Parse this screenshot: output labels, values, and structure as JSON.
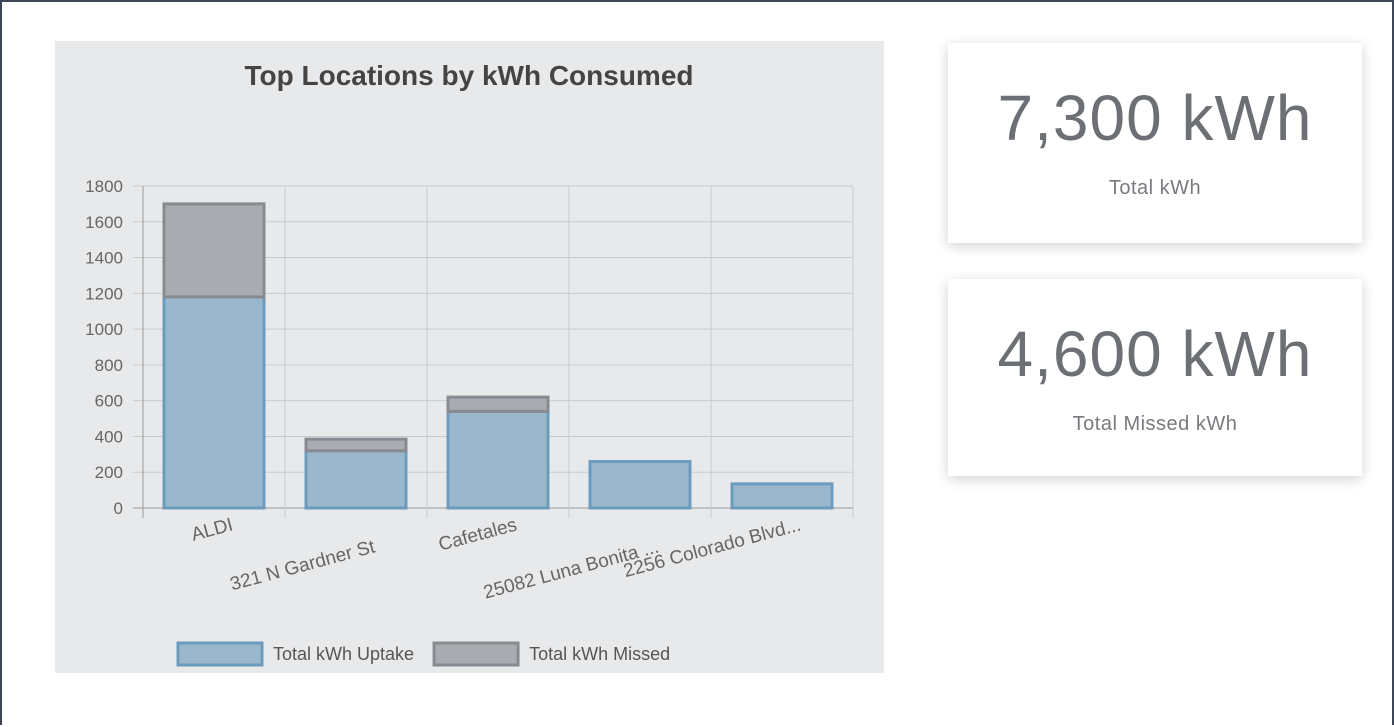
{
  "chart_data": {
    "type": "bar",
    "stacked": true,
    "title": "Top Locations by kWh Consumed",
    "categories": [
      "ALDI",
      "321 N Gardner St",
      "Cafetales",
      "25082 Luna Bonita ...",
      "2256 Colorado Blvd..."
    ],
    "series": [
      {
        "name": "Total kWh Uptake",
        "color": "#9bb7cb",
        "border_color": "#6b9cbf",
        "values": [
          1180,
          320,
          540,
          260,
          135
        ]
      },
      {
        "name": "Total kWh Missed",
        "color": "#a8acb1",
        "border_color": "#878b91",
        "values": [
          520,
          65,
          80,
          0,
          0
        ]
      }
    ],
    "ylim": [
      0,
      1800
    ],
    "yticks": [
      0,
      200,
      400,
      600,
      800,
      1000,
      1200,
      1400,
      1600,
      1800
    ],
    "grid": true,
    "legend": "bottom"
  },
  "cards": [
    {
      "value": "7,300 kWh",
      "label": "Total kWh"
    },
    {
      "value": "4,600 kWh",
      "label": "Total Missed kWh"
    }
  ]
}
